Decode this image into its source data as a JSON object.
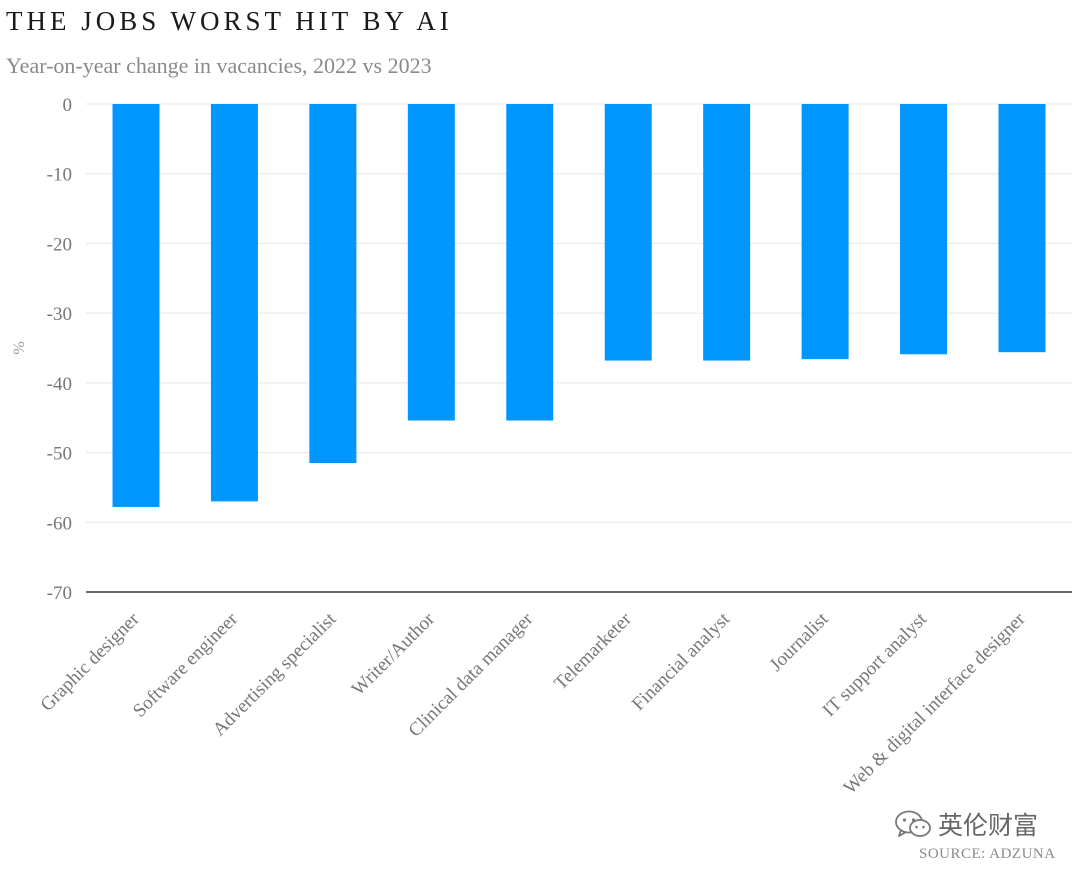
{
  "chart_data": {
    "type": "bar",
    "title": "THE JOBS WORST HIT BY AI",
    "subtitle": "Year-on-year change in vacancies, 2022 vs 2023",
    "ylabel": "%",
    "xlabel": "",
    "ylim": [
      -70,
      0
    ],
    "yticks": [
      0,
      -10,
      -20,
      -30,
      -40,
      -50,
      -60,
      -70
    ],
    "grid": true,
    "color": "#0096FF",
    "categories": [
      "Graphic designer",
      "Software engineer",
      "Advertising specialist",
      "Writer/Author",
      "Clinical data manager",
      "Telemarketer",
      "Financial analyst",
      "Journalist",
      "IT support analyst",
      "Web & digital interface designer"
    ],
    "values": [
      -57.8,
      -57.0,
      -51.5,
      -45.4,
      -45.4,
      -36.8,
      -36.8,
      -36.6,
      -35.9,
      -35.6
    ]
  },
  "watermark": {
    "text": "英伦财富",
    "icon": "wechat-icon"
  },
  "source": "SOURCE: ADZUNA"
}
